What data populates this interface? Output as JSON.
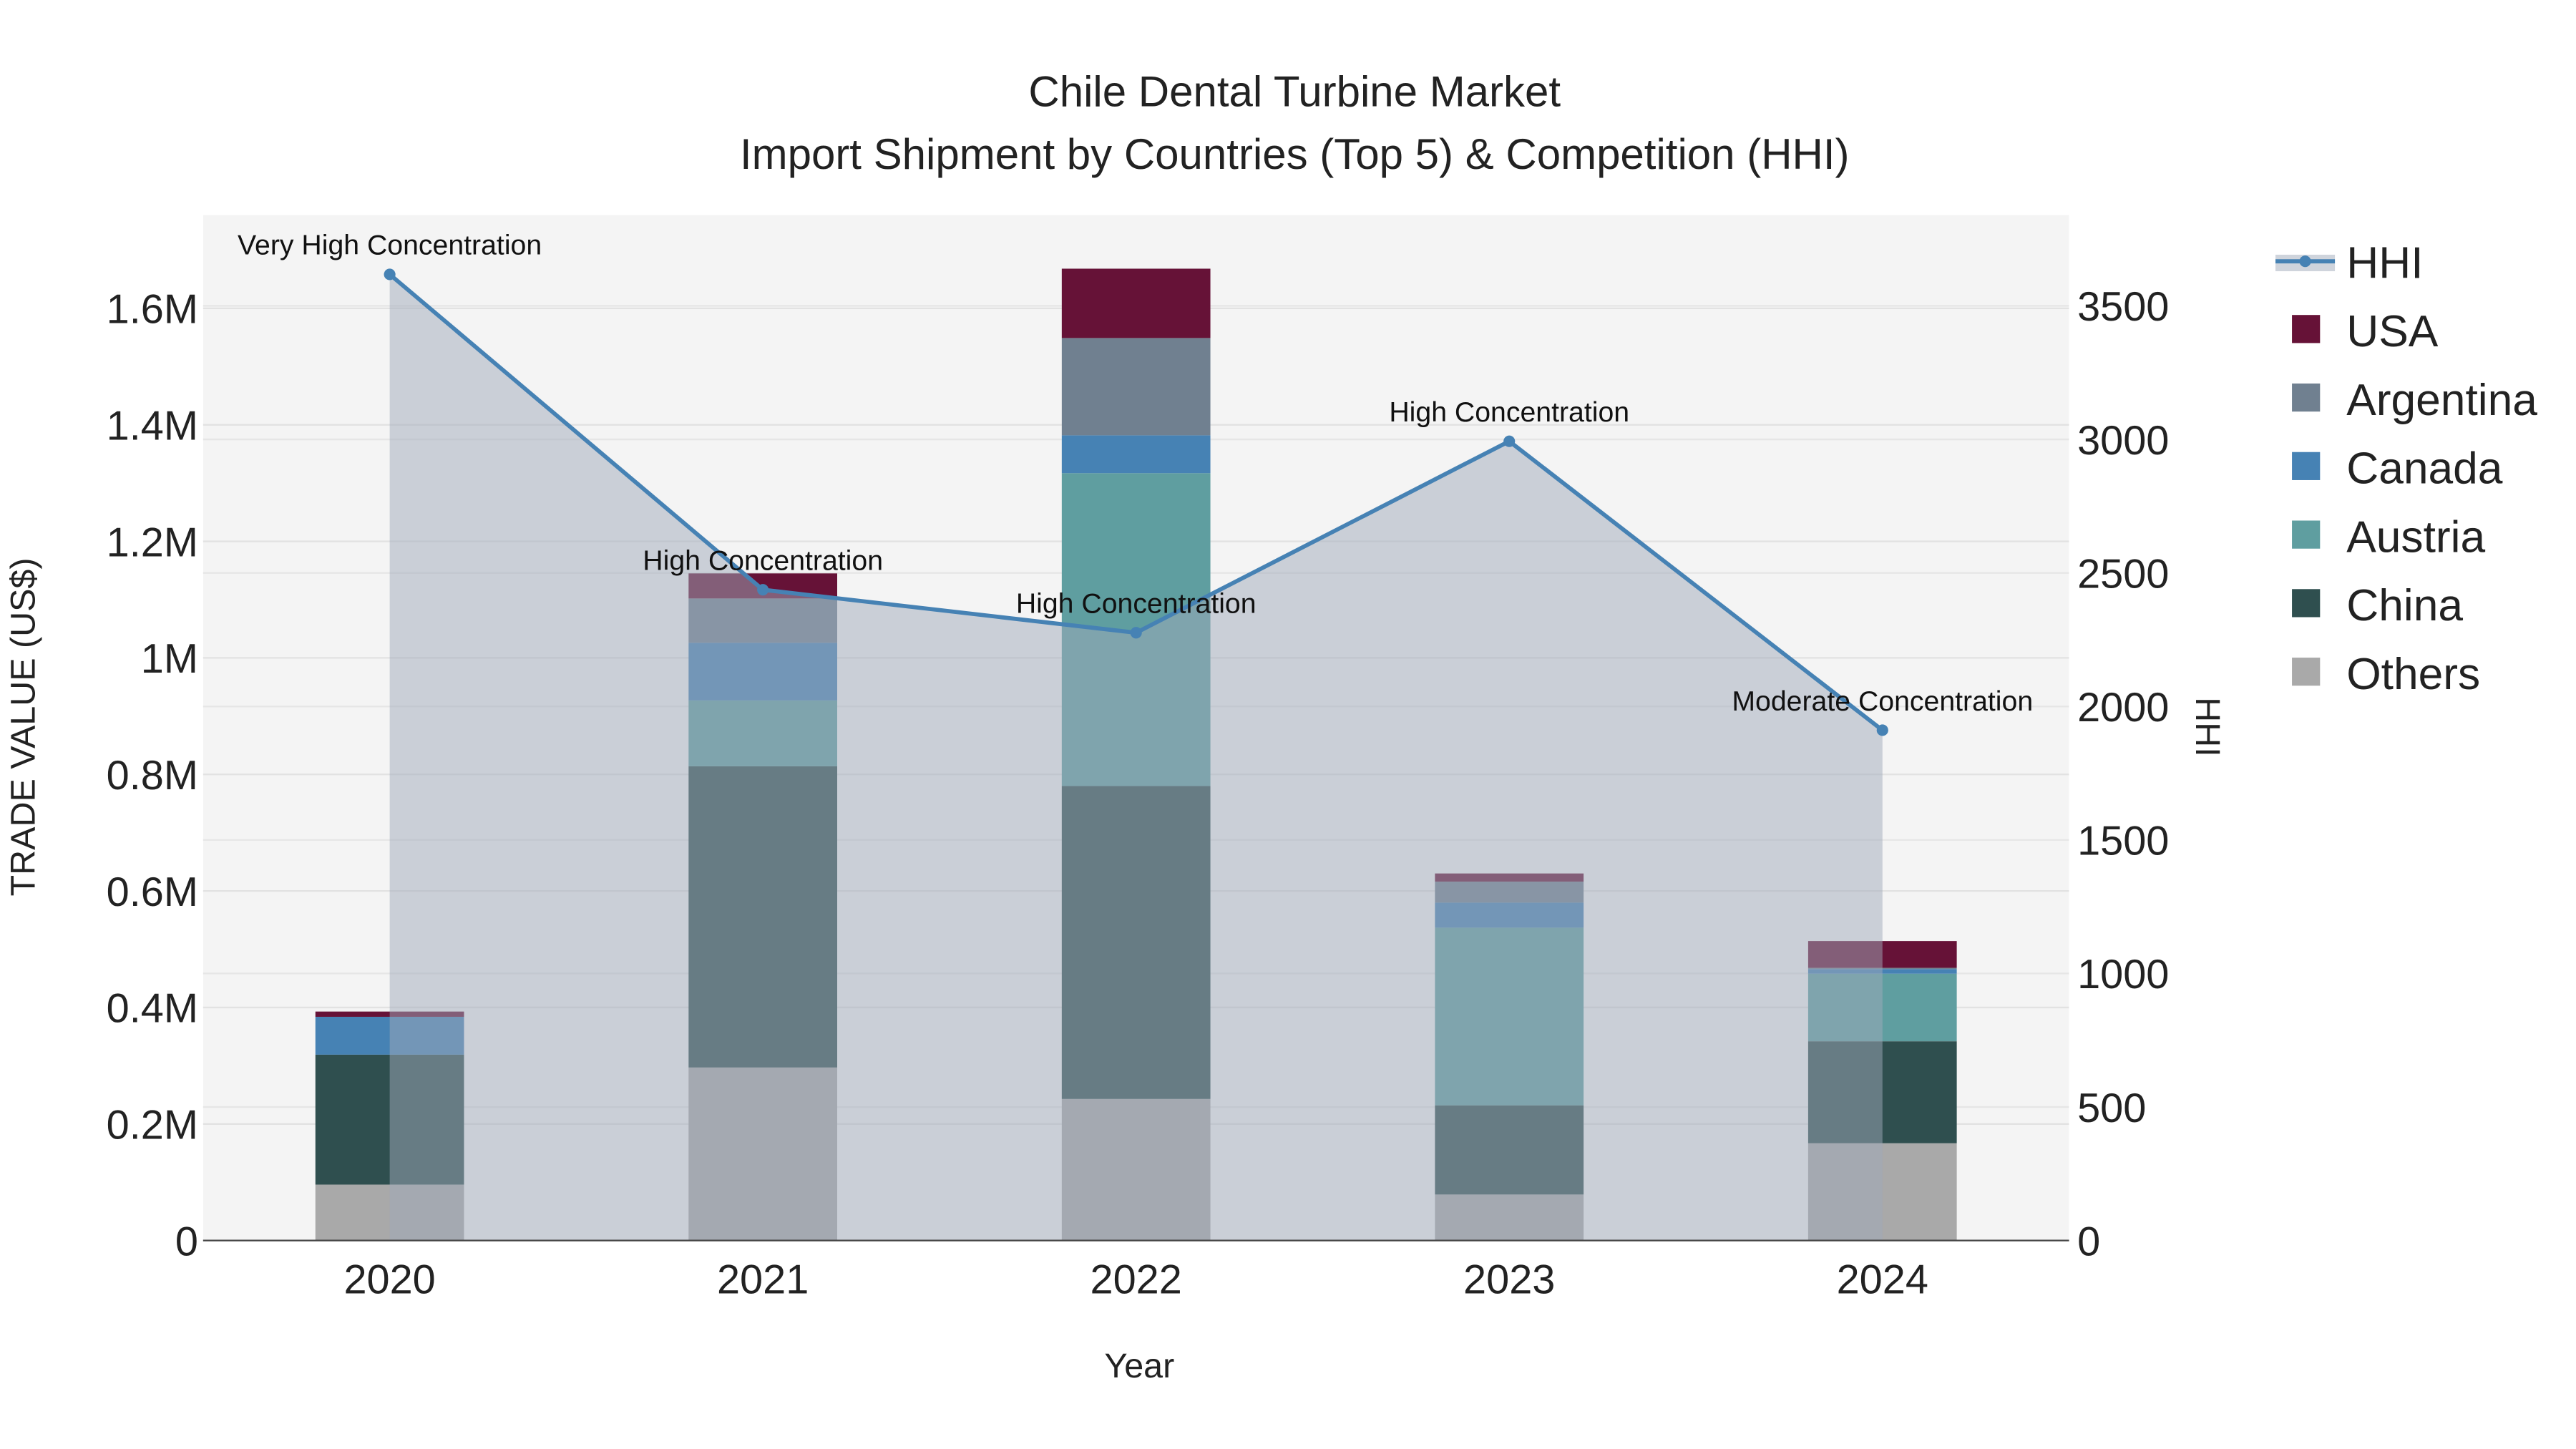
{
  "chart_data": {
    "type": "bar",
    "title": "Chile Dental Turbine Market",
    "subtitle": "Import Shipment by Countries (Top 5) & Competition (HHI)",
    "xlabel": "Year",
    "ylabel": "TRADE VALUE (US$)",
    "y2label": "HHI",
    "categories": [
      "2020",
      "2021",
      "2022",
      "2023",
      "2024"
    ],
    "ylim": [
      0,
      1760000
    ],
    "y2lim": [
      0,
      3840
    ],
    "yticks": [
      0,
      200000,
      400000,
      600000,
      800000,
      1000000,
      1200000,
      1400000,
      1600000
    ],
    "ytick_labels": [
      "0",
      "0.2M",
      "0.4M",
      "0.6M",
      "0.8M",
      "1M",
      "1.2M",
      "1.4M",
      "1.6M"
    ],
    "y2ticks": [
      0,
      500,
      1000,
      1500,
      2000,
      2500,
      3000,
      3500
    ],
    "y2tick_labels": [
      "0",
      "500",
      "1000",
      "1500",
      "2000",
      "2500",
      "3000",
      "3500"
    ],
    "grid": true,
    "legend_placement": "right",
    "series": [
      {
        "name": "Others",
        "color": "#a9a9a9",
        "values": [
          96000,
          297000,
          243000,
          79000,
          167000
        ]
      },
      {
        "name": "China",
        "color": "#2f4f4f",
        "values": [
          223000,
          517000,
          537000,
          153000,
          175000
        ]
      },
      {
        "name": "Austria",
        "color": "#5f9ea0",
        "values": [
          0,
          113000,
          537000,
          305000,
          116000
        ]
      },
      {
        "name": "Canada",
        "color": "#4682b4",
        "values": [
          65000,
          99000,
          65000,
          43000,
          8000
        ]
      },
      {
        "name": "Argentina",
        "color": "#708090",
        "values": [
          0,
          76000,
          167000,
          36000,
          2000
        ]
      },
      {
        "name": "USA",
        "color": "#661237",
        "values": [
          9000,
          43000,
          119000,
          14000,
          46000
        ]
      }
    ],
    "hhi": {
      "name": "HHI",
      "color": "#4682b4",
      "values": [
        3618,
        2437,
        2276,
        2993,
        1911
      ],
      "annotations": [
        "Very High Concentration",
        "High Concentration",
        "High Concentration",
        "High Concentration",
        "Moderate Concentration"
      ]
    },
    "legend_order": [
      "HHI",
      "USA",
      "Argentina",
      "Canada",
      "Austria",
      "China",
      "Others"
    ]
  }
}
